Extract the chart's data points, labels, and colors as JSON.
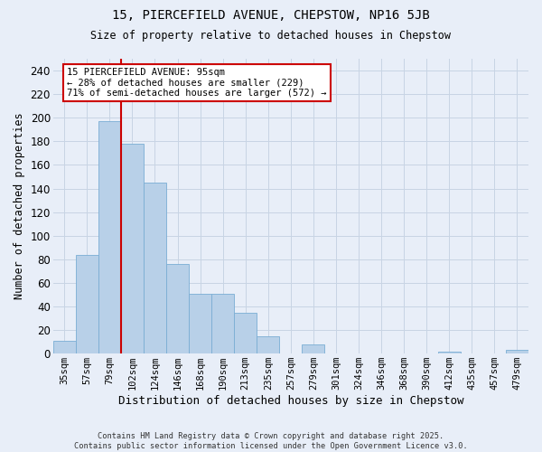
{
  "title_line1": "15, PIERCEFIELD AVENUE, CHEPSTOW, NP16 5JB",
  "title_line2": "Size of property relative to detached houses in Chepstow",
  "xlabel": "Distribution of detached houses by size in Chepstow",
  "ylabel": "Number of detached properties",
  "categories": [
    "35sqm",
    "57sqm",
    "79sqm",
    "102sqm",
    "124sqm",
    "146sqm",
    "168sqm",
    "190sqm",
    "213sqm",
    "235sqm",
    "257sqm",
    "279sqm",
    "301sqm",
    "324sqm",
    "346sqm",
    "368sqm",
    "390sqm",
    "412sqm",
    "435sqm",
    "457sqm",
    "479sqm"
  ],
  "values": [
    11,
    84,
    197,
    178,
    145,
    76,
    51,
    51,
    35,
    15,
    0,
    8,
    0,
    0,
    0,
    0,
    0,
    2,
    0,
    0,
    3
  ],
  "bar_color": "#b8d0e8",
  "bar_edge_color": "#7aadd4",
  "vline_color": "#cc0000",
  "annotation_title": "15 PIERCEFIELD AVENUE: 95sqm",
  "annotation_line2": "← 28% of detached houses are smaller (229)",
  "annotation_line3": "71% of semi-detached houses are larger (572) →",
  "annotation_box_color": "#ffffff",
  "annotation_box_edge": "#cc0000",
  "ylim": [
    0,
    250
  ],
  "yticks": [
    0,
    20,
    40,
    60,
    80,
    100,
    120,
    140,
    160,
    180,
    200,
    220,
    240
  ],
  "grid_color": "#c8d4e4",
  "background_color": "#e8eef8",
  "footnote_line1": "Contains HM Land Registry data © Crown copyright and database right 2025.",
  "footnote_line2": "Contains public sector information licensed under the Open Government Licence v3.0."
}
